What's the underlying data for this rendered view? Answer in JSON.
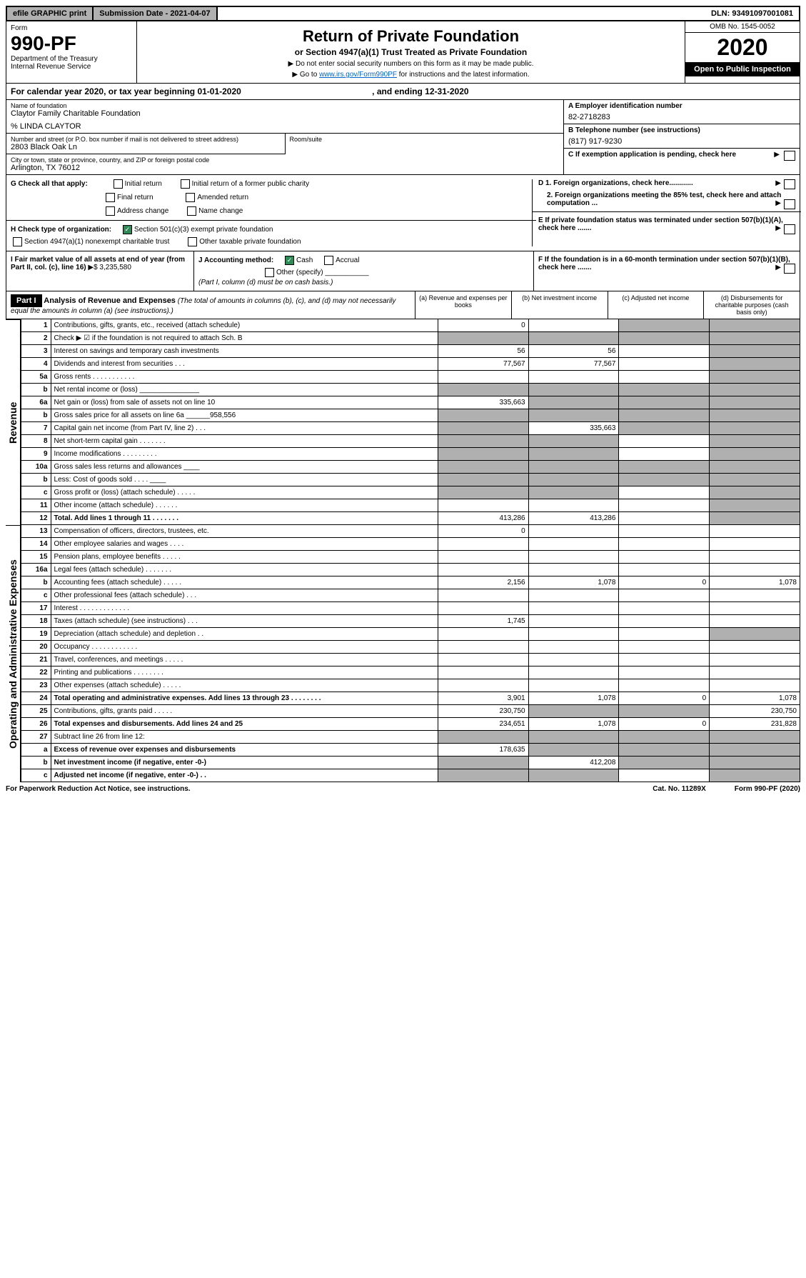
{
  "topbar": {
    "efile": "efile GRAPHIC print",
    "submission": "Submission Date - 2021-04-07",
    "dln": "DLN: 93491097001081"
  },
  "header": {
    "form_label": "Form",
    "form_no": "990-PF",
    "dept": "Department of the Treasury",
    "irs": "Internal Revenue Service",
    "title": "Return of Private Foundation",
    "subtitle": "or Section 4947(a)(1) Trust Treated as Private Foundation",
    "instr1": "▶ Do not enter social security numbers on this form as it may be made public.",
    "instr2_pre": "▶ Go to ",
    "instr2_link": "www.irs.gov/Form990PF",
    "instr2_post": " for instructions and the latest information.",
    "omb": "OMB No. 1545-0052",
    "year": "2020",
    "open": "Open to Public Inspection"
  },
  "calyear": {
    "text": "For calendar year 2020, or tax year beginning 01-01-2020",
    "ending": ", and ending 12-31-2020"
  },
  "info": {
    "name_label": "Name of foundation",
    "name": "Claytor Family Charitable Foundation",
    "care_of": "% LINDA CLAYTOR",
    "addr_label": "Number and street (or P.O. box number if mail is not delivered to street address)",
    "addr": "2803 Black Oak Ln",
    "room_label": "Room/suite",
    "city_label": "City or town, state or province, country, and ZIP or foreign postal code",
    "city": "Arlington, TX  76012",
    "a_label": "A Employer identification number",
    "ein": "82-2718283",
    "b_label": "B Telephone number (see instructions)",
    "phone": "(817) 917-9230",
    "c_label": "C If exemption application is pending, check here",
    "d1": "D 1. Foreign organizations, check here............",
    "d2": "2. Foreign organizations meeting the 85% test, check here and attach computation ...",
    "e_label": "E  If private foundation status was terminated under section 507(b)(1)(A), check here .......",
    "f_label": "F  If the foundation is in a 60-month termination under section 507(b)(1)(B), check here ......."
  },
  "g": {
    "label": "G Check all that apply:",
    "opts": [
      "Initial return",
      "Initial return of a former public charity",
      "Final return",
      "Amended return",
      "Address change",
      "Name change"
    ]
  },
  "h": {
    "label": "H Check type of organization:",
    "opt1": "Section 501(c)(3) exempt private foundation",
    "opt2": "Section 4947(a)(1) nonexempt charitable trust",
    "opt3": "Other taxable private foundation"
  },
  "i": {
    "label": "I Fair market value of all assets at end of year (from Part II, col. (c), line 16)",
    "value": "▶$  3,235,580"
  },
  "j": {
    "label": "J Accounting method:",
    "cash": "Cash",
    "accrual": "Accrual",
    "other": "Other (specify)",
    "note": "(Part I, column (d) must be on cash basis.)"
  },
  "part1": {
    "label": "Part I",
    "title": "Analysis of Revenue and Expenses",
    "note": "(The total of amounts in columns (b), (c), and (d) may not necessarily equal the amounts in column (a) (see instructions).)",
    "cols": {
      "a": "(a)    Revenue and expenses per books",
      "b": "(b)   Net investment income",
      "c": "(c)   Adjusted net income",
      "d": "(d)   Disbursements for charitable purposes (cash basis only)"
    }
  },
  "side": {
    "revenue": "Revenue",
    "expenses": "Operating and Administrative Expenses"
  },
  "rows": [
    {
      "ln": "1",
      "desc": "Contributions, gifts, grants, etc., received (attach schedule)",
      "a": "0",
      "b": "",
      "c": "shade",
      "d": "shade"
    },
    {
      "ln": "2",
      "desc": "Check ▶ ☑ if the foundation is not required to attach Sch. B",
      "a": "shade",
      "b": "shade",
      "c": "shade",
      "d": "shade",
      "dots": true
    },
    {
      "ln": "3",
      "desc": "Interest on savings and temporary cash investments",
      "a": "56",
      "b": "56",
      "c": "",
      "d": "shade"
    },
    {
      "ln": "4",
      "desc": "Dividends and interest from securities   .   .   .",
      "a": "77,567",
      "b": "77,567",
      "c": "",
      "d": "shade"
    },
    {
      "ln": "5a",
      "desc": "Gross rents   .   .   .   .   .   .   .   .   .   .   .",
      "a": "",
      "b": "",
      "c": "",
      "d": "shade"
    },
    {
      "ln": "b",
      "desc": "Net rental income or (loss)   _______________",
      "a": "shade",
      "b": "shade",
      "c": "shade",
      "d": "shade"
    },
    {
      "ln": "6a",
      "desc": "Net gain or (loss) from sale of assets not on line 10",
      "a": "335,663",
      "b": "shade",
      "c": "shade",
      "d": "shade"
    },
    {
      "ln": "b",
      "desc": "Gross sales price for all assets on line 6a ______958,556",
      "a": "shade",
      "b": "shade",
      "c": "shade",
      "d": "shade"
    },
    {
      "ln": "7",
      "desc": "Capital gain net income (from Part IV, line 2)   .   .   .",
      "a": "shade",
      "b": "335,663",
      "c": "shade",
      "d": "shade"
    },
    {
      "ln": "8",
      "desc": "Net short-term capital gain   .   .   .   .   .   .   .",
      "a": "shade",
      "b": "shade",
      "c": "",
      "d": "shade"
    },
    {
      "ln": "9",
      "desc": "Income modifications   .   .   .   .   .   .   .   .   .",
      "a": "shade",
      "b": "shade",
      "c": "",
      "d": "shade"
    },
    {
      "ln": "10a",
      "desc": "Gross sales less returns and allowances  ____",
      "a": "shade",
      "b": "shade",
      "c": "shade",
      "d": "shade"
    },
    {
      "ln": "b",
      "desc": "Less: Cost of goods sold   .   .   .   .  ____",
      "a": "shade",
      "b": "shade",
      "c": "shade",
      "d": "shade"
    },
    {
      "ln": "c",
      "desc": "Gross profit or (loss) (attach schedule)   .   .   .   .   .",
      "a": "shade",
      "b": "shade",
      "c": "",
      "d": "shade"
    },
    {
      "ln": "11",
      "desc": "Other income (attach schedule)   .   .   .   .   .   .",
      "a": "",
      "b": "",
      "c": "",
      "d": "shade"
    },
    {
      "ln": "12",
      "desc": "Total. Add lines 1 through 11   .   .   .   .   .   .   .",
      "a": "413,286",
      "b": "413,286",
      "c": "",
      "d": "shade",
      "bold": true
    }
  ],
  "exp_rows": [
    {
      "ln": "13",
      "desc": "Compensation of officers, directors, trustees, etc.",
      "a": "0",
      "b": "",
      "c": "",
      "d": ""
    },
    {
      "ln": "14",
      "desc": "Other employee salaries and wages   .   .   .   .",
      "a": "",
      "b": "",
      "c": "",
      "d": ""
    },
    {
      "ln": "15",
      "desc": "Pension plans, employee benefits   .   .   .   .   .",
      "a": "",
      "b": "",
      "c": "",
      "d": ""
    },
    {
      "ln": "16a",
      "desc": "Legal fees (attach schedule)   .   .   .   .   .   .   .",
      "a": "",
      "b": "",
      "c": "",
      "d": ""
    },
    {
      "ln": "b",
      "desc": "Accounting fees (attach schedule)   .   .   .   .   .",
      "a": "2,156",
      "b": "1,078",
      "c": "0",
      "d": "1,078"
    },
    {
      "ln": "c",
      "desc": "Other professional fees (attach schedule)   .   .   .",
      "a": "",
      "b": "",
      "c": "",
      "d": ""
    },
    {
      "ln": "17",
      "desc": "Interest   .   .   .   .   .   .   .   .   .   .   .   .   .",
      "a": "",
      "b": "",
      "c": "",
      "d": ""
    },
    {
      "ln": "18",
      "desc": "Taxes (attach schedule) (see instructions)   .   .   .",
      "a": "1,745",
      "b": "",
      "c": "",
      "d": ""
    },
    {
      "ln": "19",
      "desc": "Depreciation (attach schedule) and depletion   .   .",
      "a": "",
      "b": "",
      "c": "",
      "d": "shade"
    },
    {
      "ln": "20",
      "desc": "Occupancy   .   .   .   .   .   .   .   .   .   .   .   .",
      "a": "",
      "b": "",
      "c": "",
      "d": ""
    },
    {
      "ln": "21",
      "desc": "Travel, conferences, and meetings   .   .   .   .   .",
      "a": "",
      "b": "",
      "c": "",
      "d": ""
    },
    {
      "ln": "22",
      "desc": "Printing and publications   .   .   .   .   .   .   .   .",
      "a": "",
      "b": "",
      "c": "",
      "d": ""
    },
    {
      "ln": "23",
      "desc": "Other expenses (attach schedule)   .   .   .   .   .",
      "a": "",
      "b": "",
      "c": "",
      "d": ""
    },
    {
      "ln": "24",
      "desc": "Total operating and administrative expenses. Add lines 13 through 23   .   .   .   .   .   .   .   .",
      "a": "3,901",
      "b": "1,078",
      "c": "0",
      "d": "1,078",
      "bold": true
    },
    {
      "ln": "25",
      "desc": "Contributions, gifts, grants paid   .   .   .   .   .",
      "a": "230,750",
      "b": "shade",
      "c": "shade",
      "d": "230,750"
    },
    {
      "ln": "26",
      "desc": "Total expenses and disbursements. Add lines 24 and 25",
      "a": "234,651",
      "b": "1,078",
      "c": "0",
      "d": "231,828",
      "bold": true
    },
    {
      "ln": "27",
      "desc": "Subtract line 26 from line 12:",
      "a": "shade",
      "b": "shade",
      "c": "shade",
      "d": "shade"
    },
    {
      "ln": "a",
      "desc": "Excess of revenue over expenses and disbursements",
      "a": "178,635",
      "b": "shade",
      "c": "shade",
      "d": "shade",
      "bold": true
    },
    {
      "ln": "b",
      "desc": "Net investment income (if negative, enter -0-)",
      "a": "shade",
      "b": "412,208",
      "c": "shade",
      "d": "shade",
      "bold": true
    },
    {
      "ln": "c",
      "desc": "Adjusted net income (if negative, enter -0-)   .   .",
      "a": "shade",
      "b": "shade",
      "c": "",
      "d": "shade",
      "bold": true
    }
  ],
  "footer": {
    "left": "For Paperwork Reduction Act Notice, see instructions.",
    "mid": "Cat. No. 11289X",
    "right": "Form 990-PF (2020)"
  }
}
